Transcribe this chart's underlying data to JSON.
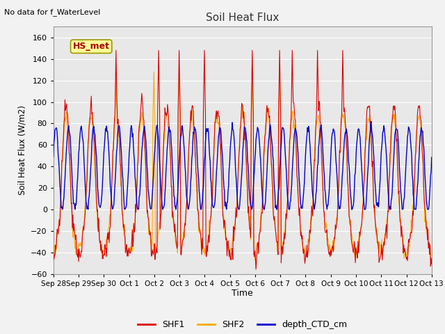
{
  "title": "Soil Heat Flux",
  "note_text": "No data for f_WaterLevel",
  "ylabel": "Soil Heat Flux (W/m2)",
  "xlabel": "Time",
  "ylim": [
    -60,
    170
  ],
  "yticks": [
    -60,
    -40,
    -20,
    0,
    20,
    40,
    60,
    80,
    100,
    120,
    140,
    160
  ],
  "xtick_labels": [
    "Sep 28",
    "Sep 29",
    "Sep 30",
    "Oct 1",
    "Oct 2",
    "Oct 3",
    "Oct 4",
    "Oct 5",
    "Oct 6",
    "Oct 7",
    "Oct 8",
    "Oct 9",
    "Oct 10",
    "Oct 11",
    "Oct 12",
    "Oct 13"
  ],
  "legend_labels": [
    "SHF1",
    "SHF2",
    "depth_CTD_cm"
  ],
  "shf1_color": "#dd0000",
  "shf2_color": "#ffaa00",
  "depth_color": "#0000cc",
  "plot_bg_color": "#e8e8e8",
  "annotation_box_color": "#ffff99",
  "annotation_text_color": "#aa0000",
  "annotation_text": "HS_met",
  "grid_color": "#ffffff",
  "num_days": 15,
  "samples_per_day": 48
}
